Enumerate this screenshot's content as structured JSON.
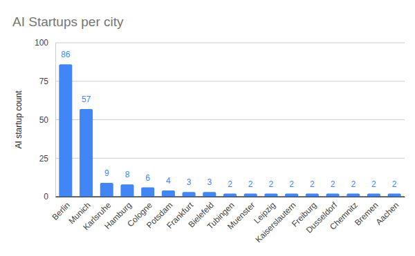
{
  "chart_data": {
    "type": "bar",
    "title": "AI Startups per city",
    "y_label": "AI startup count",
    "categories": [
      "Berlin",
      "Munich",
      "Karlsruhe",
      "Hamburg",
      "Cologne",
      "Potsdam",
      "Frankfurt",
      "Bielefeld",
      "Tubingen",
      "Muenster",
      "Leipzig",
      "Kaiserslautern",
      "Freiburg",
      "Dusseldorf",
      "Chemnitz",
      "Bremen",
      "Aachen"
    ],
    "values": [
      86,
      57,
      9,
      8,
      6,
      4,
      3,
      3,
      2,
      2,
      2,
      2,
      2,
      2,
      2,
      2,
      2
    ],
    "color": "#4285f4",
    "ylim": [
      0,
      100
    ],
    "yticks": [
      0,
      25,
      50,
      75,
      100
    ],
    "grid": true,
    "data_labels": true
  }
}
